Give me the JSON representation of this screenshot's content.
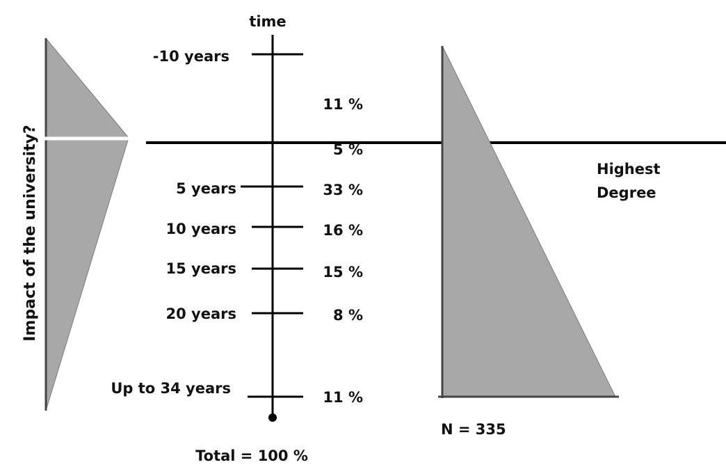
{
  "axis": {
    "title": "time"
  },
  "vertical_label": "Impact of the university?",
  "timeline": {
    "rows": [
      {
        "period": "-10 years",
        "percent": "11 %"
      },
      {
        "period": "",
        "percent": "5 %"
      },
      {
        "period": "5 years",
        "percent": "33 %"
      },
      {
        "period": "10 years",
        "percent": "16 %"
      },
      {
        "period": "15 years",
        "percent": "15 %"
      },
      {
        "period": "20 years",
        "percent": "8 %"
      },
      {
        "period": "Up to 34 years",
        "percent": "11 %"
      }
    ],
    "total": "Total = 100 %"
  },
  "right_panel": {
    "label_line1": "Highest",
    "label_line2": "Degree",
    "n_label": "N = 335"
  },
  "colors": {
    "fill": "#a8a8a8",
    "line": "#000000",
    "text": "#111111"
  }
}
